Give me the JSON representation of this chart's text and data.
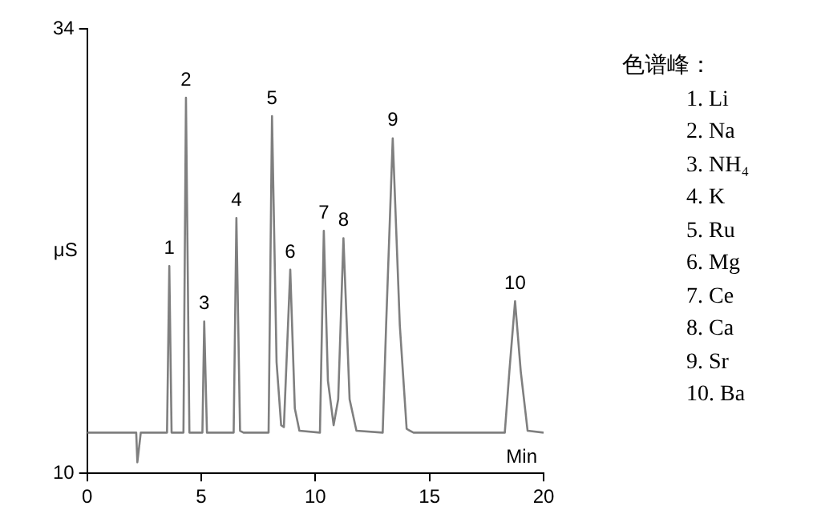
{
  "chart_data": {
    "type": "line",
    "xlabel": "Min",
    "ylabel": "μS",
    "x": [
      0,
      2.15,
      2.2,
      2.35,
      3.5,
      3.6,
      3.7,
      4.22,
      4.33,
      4.48,
      5.05,
      5.13,
      5.25,
      6.42,
      6.54,
      6.7,
      6.85,
      7.95,
      8.1,
      8.3,
      8.5,
      8.62,
      8.9,
      9.1,
      9.3,
      10.2,
      10.37,
      10.55,
      10.8,
      11.0,
      11.23,
      11.5,
      11.8,
      12.95,
      13.1,
      13.39,
      13.7,
      14.0,
      14.3,
      18.3,
      18.5,
      18.75,
      19.0,
      19.3,
      20
    ],
    "series": [
      {
        "color": "#7f7f7f",
        "values": [
          12.2,
          12.2,
          10.6,
          12.2,
          12.2,
          21.2,
          12.2,
          12.2,
          30.3,
          12.2,
          12.2,
          18.2,
          12.2,
          12.2,
          23.8,
          12.3,
          12.2,
          12.2,
          29.3,
          16,
          12.6,
          12.5,
          21.0,
          13.5,
          12.3,
          12.2,
          23.1,
          15,
          12.6,
          14,
          22.7,
          14,
          12.3,
          12.2,
          18,
          28.1,
          18,
          12.4,
          12.2,
          12.2,
          15.5,
          19.3,
          15.5,
          12.3,
          12.2
        ]
      }
    ],
    "xlim": [
      0,
      20
    ],
    "xticks": [
      0,
      5,
      10,
      15,
      20
    ],
    "ylim": [
      10,
      34
    ],
    "yticks": [
      10,
      34
    ],
    "grid": false,
    "legend": false,
    "marker": "none",
    "line_style": "solid",
    "annotations": [
      {
        "text": "1",
        "x": 3.6,
        "y": 21.2
      },
      {
        "text": "2",
        "x": 4.33,
        "y": 30.3
      },
      {
        "text": "3",
        "x": 5.13,
        "y": 18.2
      },
      {
        "text": "4",
        "x": 6.54,
        "y": 23.8
      },
      {
        "text": "5",
        "x": 8.1,
        "y": 29.3
      },
      {
        "text": "6",
        "x": 8.9,
        "y": 21.0
      },
      {
        "text": "7",
        "x": 10.37,
        "y": 23.1
      },
      {
        "text": "8",
        "x": 11.23,
        "y": 22.7
      },
      {
        "text": "9",
        "x": 13.39,
        "y": 28.1
      },
      {
        "text": "10",
        "x": 18.75,
        "y": 19.3
      },
      "色谱峰：",
      "1. Li",
      "2. Na",
      "3. NH₄",
      "4. K",
      "5. Ru",
      "6. Mg",
      "7. Ce",
      "8. Ca",
      "9. Sr",
      "10. Ba"
    ]
  }
}
